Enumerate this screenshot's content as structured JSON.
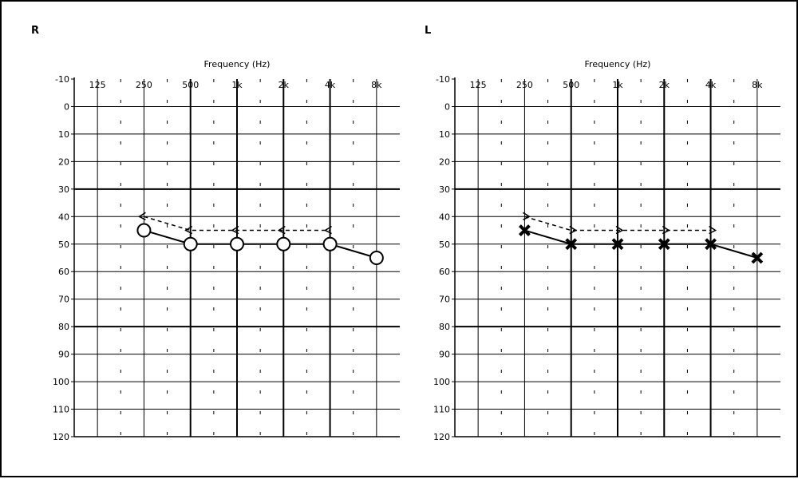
{
  "chart_data": [
    {
      "type": "line",
      "ear": "R",
      "side_label": "R",
      "xlabel": "Frequency (Hz)",
      "ylabel": "",
      "x_ticks": [
        "125",
        "250",
        "500",
        "1k",
        "2k",
        "4k",
        "8k"
      ],
      "y_ticks": [
        -10,
        0,
        10,
        20,
        30,
        40,
        50,
        60,
        70,
        80,
        90,
        100,
        110,
        120
      ],
      "ylim": [
        -10,
        120
      ],
      "y_inverted": true,
      "grid": true,
      "series": [
        {
          "marker": "circle",
          "style": "solid",
          "color": "#000000",
          "points": [
            {
              "x": "250",
              "y": 45
            },
            {
              "x": "500",
              "y": 50
            },
            {
              "x": "1k",
              "y": 50
            },
            {
              "x": "2k",
              "y": 50
            },
            {
              "x": "4k",
              "y": 50
            },
            {
              "x": "8k",
              "y": 55
            }
          ]
        },
        {
          "marker": "bracket-left",
          "style": "dashed",
          "color": "#000000",
          "points": [
            {
              "x": "250",
              "y": 40
            },
            {
              "x": "500",
              "y": 45
            },
            {
              "x": "1k",
              "y": 45
            },
            {
              "x": "2k",
              "y": 45
            },
            {
              "x": "4k",
              "y": 45
            }
          ]
        }
      ]
    },
    {
      "type": "line",
      "ear": "L",
      "side_label": "L",
      "xlabel": "Frequency (Hz)",
      "ylabel": "",
      "x_ticks": [
        "125",
        "250",
        "500",
        "1k",
        "2k",
        "4k",
        "8k"
      ],
      "y_ticks": [
        -10,
        0,
        10,
        20,
        30,
        40,
        50,
        60,
        70,
        80,
        90,
        100,
        110,
        120
      ],
      "ylim": [
        -10,
        120
      ],
      "y_inverted": true,
      "grid": true,
      "series": [
        {
          "marker": "x",
          "style": "solid",
          "color": "#000000",
          "points": [
            {
              "x": "250",
              "y": 45
            },
            {
              "x": "500",
              "y": 50
            },
            {
              "x": "1k",
              "y": 50
            },
            {
              "x": "2k",
              "y": 50
            },
            {
              "x": "4k",
              "y": 50
            },
            {
              "x": "8k",
              "y": 55
            }
          ]
        },
        {
          "marker": "bracket-right",
          "style": "dashed",
          "color": "#000000",
          "points": [
            {
              "x": "250",
              "y": 40
            },
            {
              "x": "500",
              "y": 45
            },
            {
              "x": "1k",
              "y": 45
            },
            {
              "x": "2k",
              "y": 45
            },
            {
              "x": "4k",
              "y": 45
            }
          ]
        }
      ]
    }
  ]
}
